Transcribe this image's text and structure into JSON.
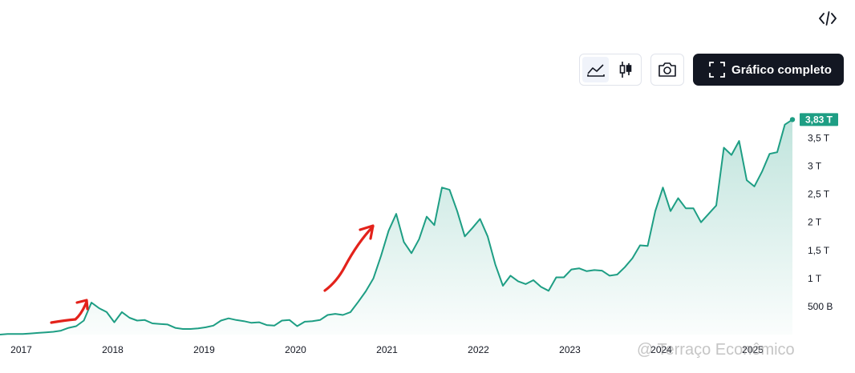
{
  "toolbar": {
    "embed_icon": "code-icon",
    "chart_style_icons": [
      "area-chart-icon",
      "candlestick-icon"
    ],
    "snapshot_icon": "camera-icon",
    "fullscreen_icon": "expand-icon",
    "full_chart_label": "Gráfico completo"
  },
  "watermark": "@ Terraço Econômico",
  "colors": {
    "line": "#1e9e84",
    "fill_top": "#bfe5dc",
    "price_label_bg": "#1e9e84",
    "annotation_arrows": "#e3221b"
  },
  "chart_data": {
    "type": "area",
    "ylim": [
      0,
      3.85
    ],
    "y_unit_note": "trillions",
    "y_ticks": [
      {
        "value": 0.5,
        "label": "500 B"
      },
      {
        "value": 1,
        "label": "1 T"
      },
      {
        "value": 1.5,
        "label": "1,5 T"
      },
      {
        "value": 2,
        "label": "2 T"
      },
      {
        "value": 2.5,
        "label": "2,5 T"
      },
      {
        "value": 3,
        "label": "3 T"
      },
      {
        "value": 3.5,
        "label": "3,5 T"
      }
    ],
    "x_ticks": [
      "2017",
      "2018",
      "2019",
      "2020",
      "2021",
      "2022",
      "2023",
      "2024",
      "2025"
    ],
    "last_value_label": "3,83 T",
    "grid": false,
    "series": [
      {
        "x": [
          "2016-12",
          "2017-01",
          "2017-02",
          "2017-03",
          "2017-04",
          "2017-05",
          "2017-06",
          "2017-07",
          "2017-08",
          "2017-09",
          "2017-10",
          "2017-11",
          "2017-12",
          "2018-01",
          "2018-02",
          "2018-03",
          "2018-04",
          "2018-05",
          "2018-06",
          "2018-07",
          "2018-08",
          "2018-09",
          "2018-10",
          "2018-11",
          "2018-12",
          "2019-01",
          "2019-02",
          "2019-03",
          "2019-04",
          "2019-05",
          "2019-06",
          "2019-07",
          "2019-08",
          "2019-09",
          "2019-10",
          "2019-11",
          "2019-12",
          "2020-01",
          "2020-02",
          "2020-03",
          "2020-04",
          "2020-05",
          "2020-06",
          "2020-07",
          "2020-08",
          "2020-09",
          "2020-10",
          "2020-11",
          "2020-12",
          "2021-01",
          "2021-02",
          "2021-03",
          "2021-04",
          "2021-05",
          "2021-06",
          "2021-07",
          "2021-08",
          "2021-09",
          "2021-10",
          "2021-11",
          "2021-12",
          "2022-01",
          "2022-02",
          "2022-03",
          "2022-04",
          "2022-05",
          "2022-06",
          "2022-07",
          "2022-08",
          "2022-09",
          "2022-10",
          "2022-11",
          "2022-12",
          "2023-01",
          "2023-02",
          "2023-03",
          "2023-04",
          "2023-05",
          "2023-06",
          "2023-07",
          "2023-08",
          "2023-09",
          "2023-10",
          "2023-11",
          "2023-12",
          "2024-01",
          "2024-02",
          "2024-03",
          "2024-04",
          "2024-05",
          "2024-06",
          "2024-07",
          "2024-08",
          "2024-09",
          "2024-10",
          "2024-11",
          "2024-12",
          "2025-01",
          "2025-02",
          "2025-03",
          "2025-04",
          "2025-05",
          "2025-06",
          "2025-07",
          "2025-08"
        ],
        "values": [
          0.0,
          0.01,
          0.01,
          0.01,
          0.02,
          0.03,
          0.04,
          0.05,
          0.07,
          0.12,
          0.15,
          0.25,
          0.57,
          0.47,
          0.4,
          0.22,
          0.4,
          0.3,
          0.25,
          0.26,
          0.2,
          0.19,
          0.18,
          0.12,
          0.1,
          0.1,
          0.11,
          0.13,
          0.16,
          0.25,
          0.29,
          0.26,
          0.24,
          0.21,
          0.22,
          0.17,
          0.16,
          0.25,
          0.26,
          0.15,
          0.23,
          0.24,
          0.26,
          0.35,
          0.37,
          0.35,
          0.4,
          0.58,
          0.77,
          1.0,
          1.4,
          1.85,
          2.15,
          1.65,
          1.45,
          1.7,
          2.1,
          1.95,
          2.62,
          2.58,
          2.2,
          1.75,
          1.9,
          2.06,
          1.75,
          1.25,
          0.87,
          1.05,
          0.95,
          0.9,
          0.97,
          0.85,
          0.78,
          1.02,
          1.02,
          1.16,
          1.18,
          1.13,
          1.15,
          1.14,
          1.05,
          1.07,
          1.2,
          1.36,
          1.59,
          1.58,
          2.2,
          2.62,
          2.2,
          2.43,
          2.25,
          2.25,
          2.0,
          2.15,
          2.3,
          3.33,
          3.2,
          3.45,
          2.75,
          2.64,
          2.9,
          3.22,
          3.25,
          3.74,
          3.83
        ]
      }
    ]
  }
}
